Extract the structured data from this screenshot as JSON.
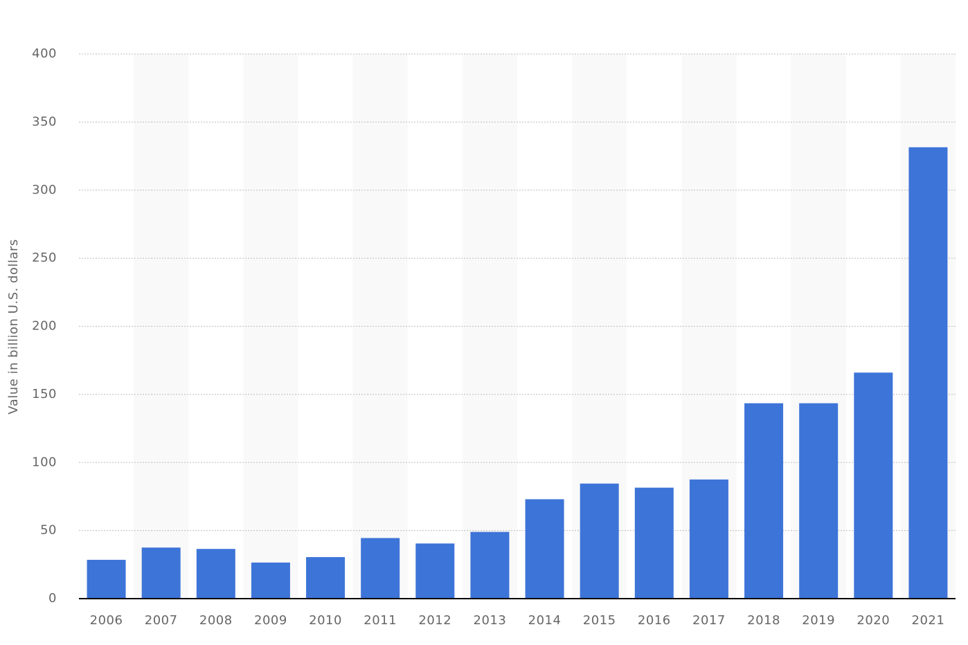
{
  "chart_data": {
    "type": "bar",
    "y_label": "Value in billion U.S. dollars",
    "categories": [
      "2006",
      "2007",
      "2008",
      "2009",
      "2010",
      "2011",
      "2012",
      "2013",
      "2014",
      "2015",
      "2016",
      "2017",
      "2018",
      "2019",
      "2020",
      "2021"
    ],
    "values": [
      28.5,
      37.5,
      36.5,
      26.5,
      30.5,
      44.5,
      40.5,
      49,
      73,
      84.5,
      81.5,
      87.5,
      143.5,
      143.5,
      166,
      331.5
    ],
    "color": "#3d74d8",
    "ylim": [
      0,
      400
    ],
    "yticks": [
      0,
      50,
      100,
      150,
      200,
      250,
      300,
      350,
      400
    ],
    "grid": true
  }
}
